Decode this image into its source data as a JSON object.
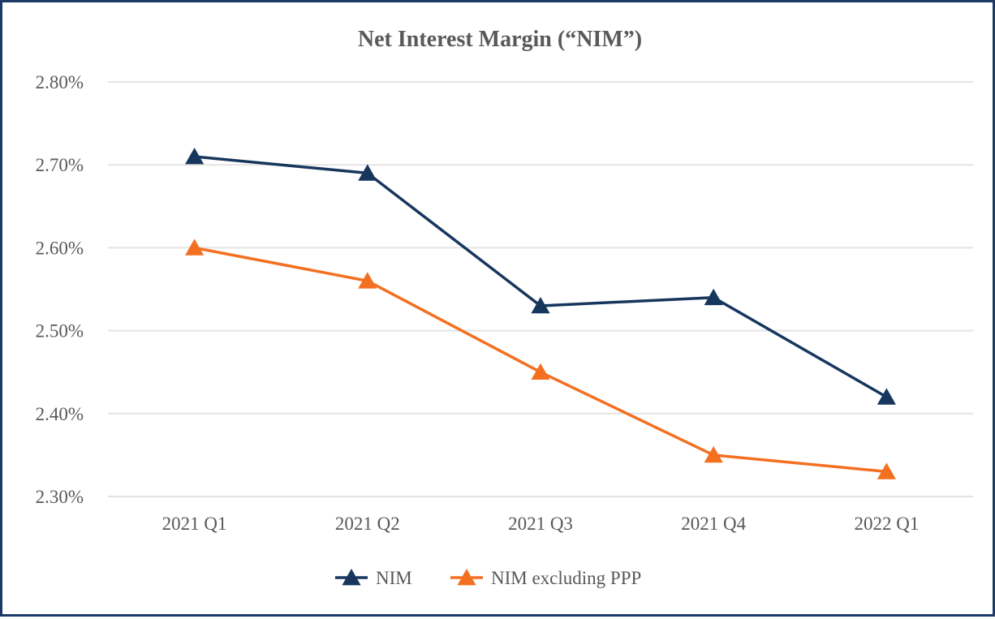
{
  "chart_data": {
    "type": "line",
    "title": "Net Interest Margin (“NIM”)",
    "categories": [
      "2021 Q1",
      "2021 Q2",
      "2021 Q3",
      "2021 Q4",
      "2022 Q1"
    ],
    "y_ticks": [
      "2.30%",
      "2.40%",
      "2.50%",
      "2.60%",
      "2.70%",
      "2.80%"
    ],
    "ylim": [
      2.3,
      2.8
    ],
    "grid": true,
    "legend_position": "bottom",
    "marker": "triangle",
    "series": [
      {
        "name": "NIM",
        "color": "#17365d",
        "values": [
          2.71,
          2.69,
          2.53,
          2.54,
          2.42
        ]
      },
      {
        "name": "NIM excluding PPP",
        "color": "#f37021",
        "values": [
          2.6,
          2.56,
          2.45,
          2.35,
          2.33
        ]
      }
    ]
  }
}
